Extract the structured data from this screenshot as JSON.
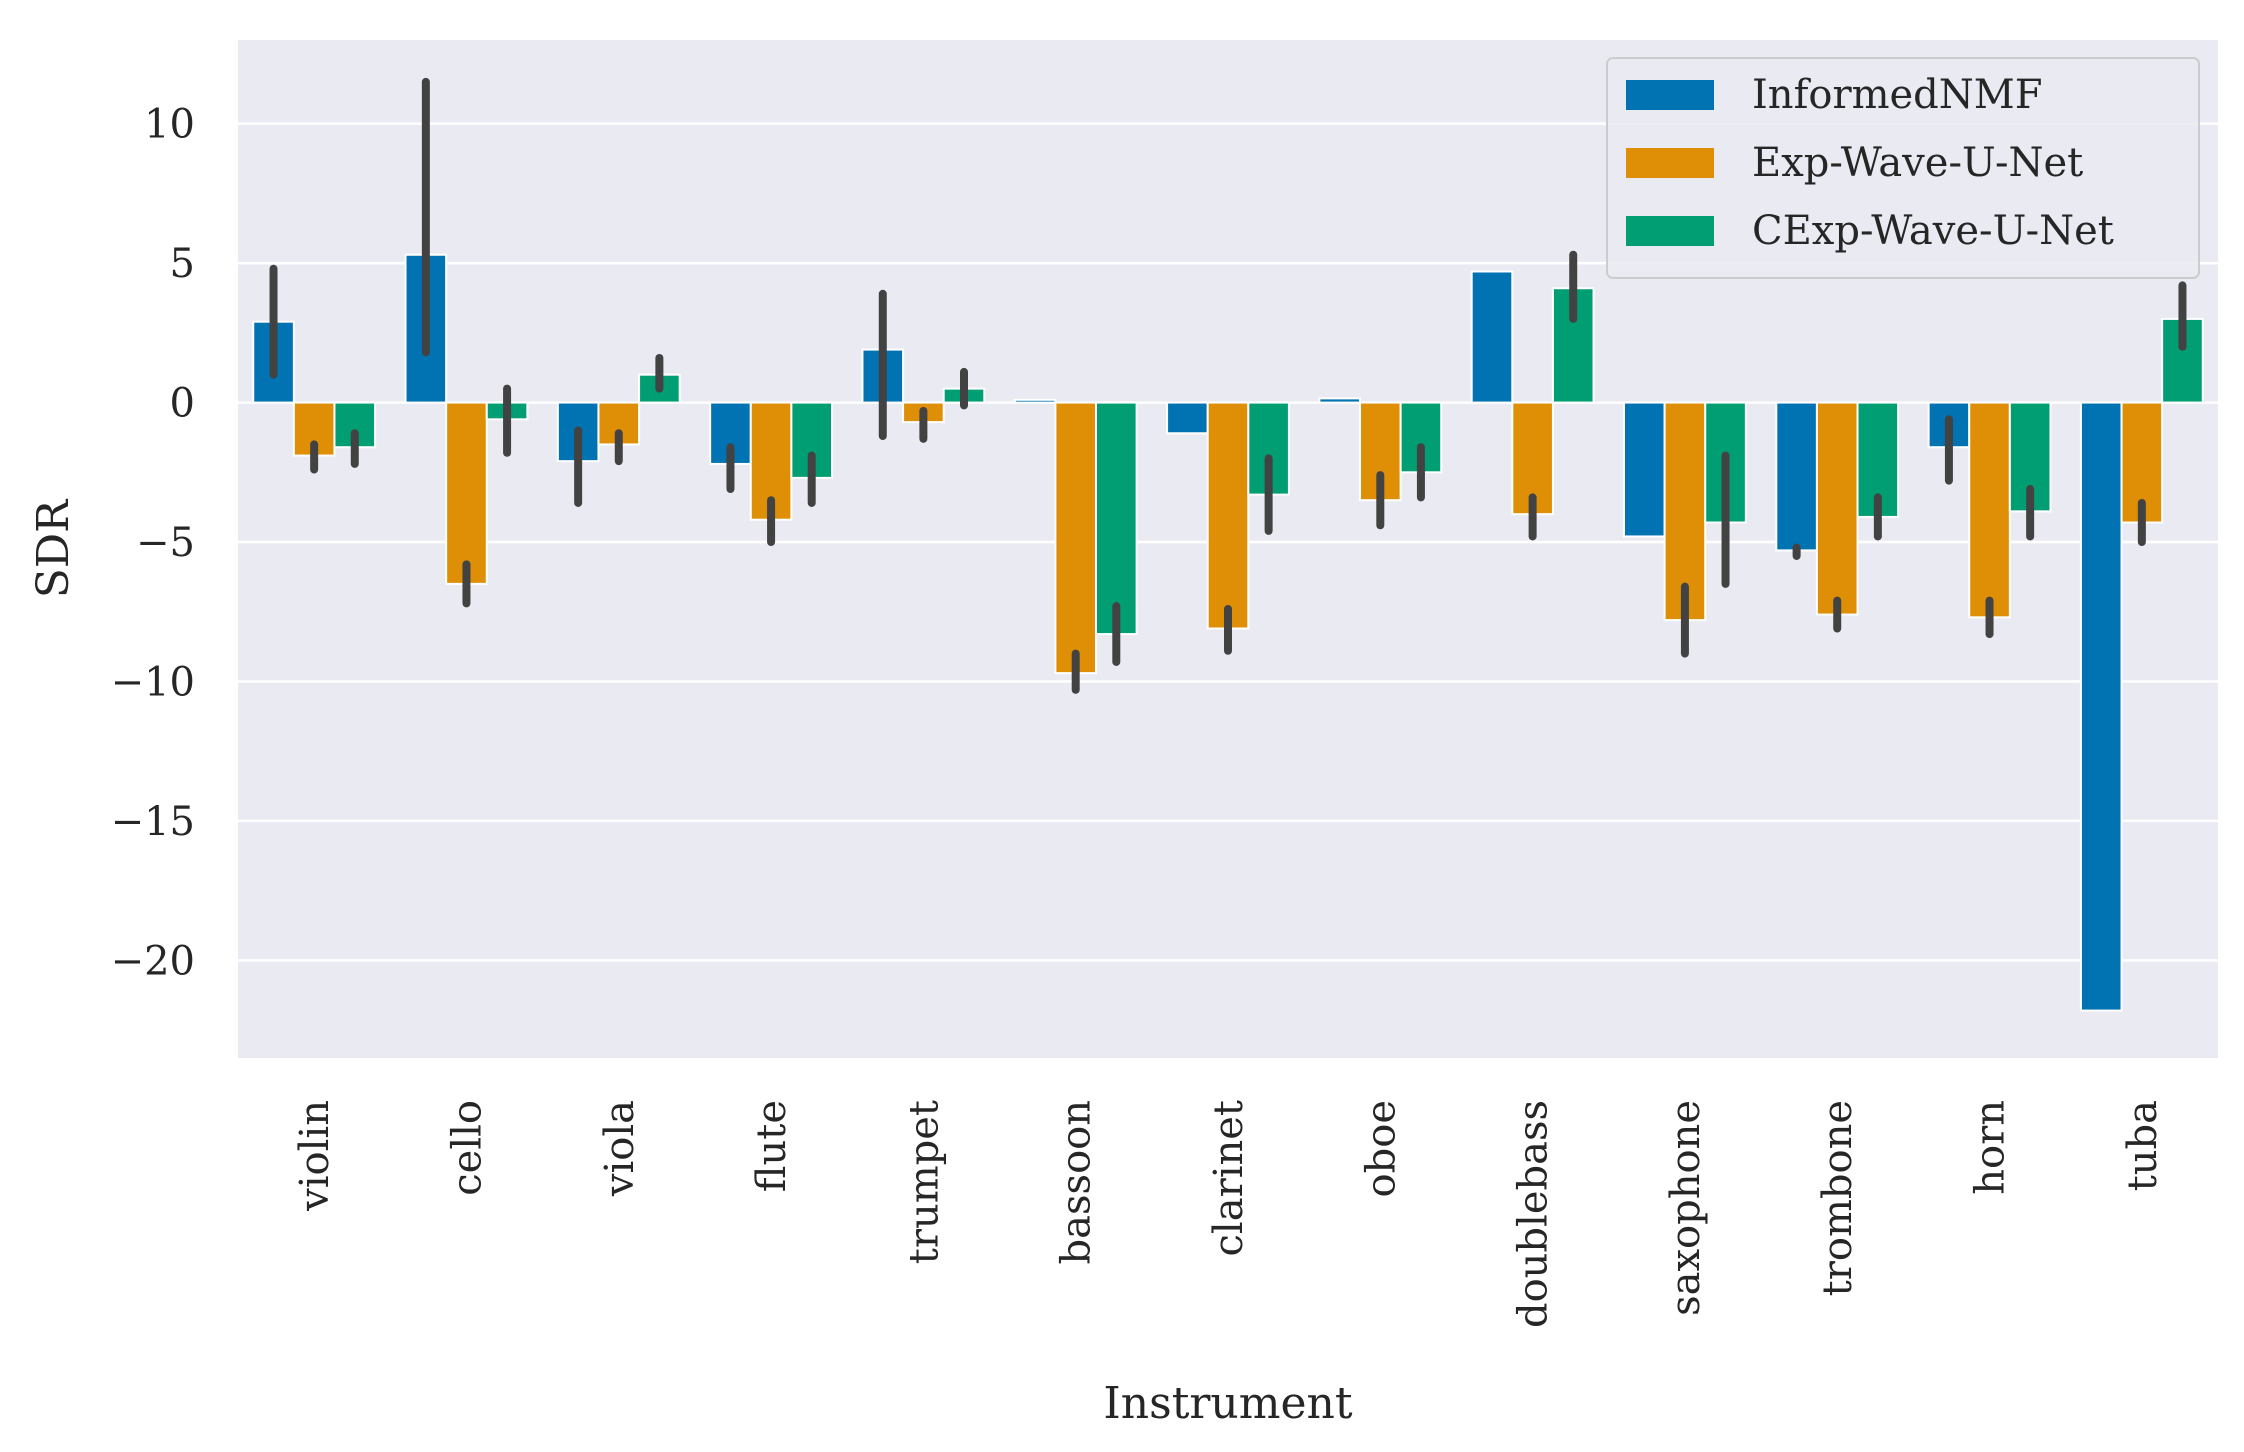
{
  "chart_data": {
    "type": "bar",
    "xlabel": "Instrument",
    "ylabel": "SDR",
    "ylim": [
      -23.5,
      13
    ],
    "yticks": [
      10,
      5,
      0,
      -5,
      -10,
      -15,
      -20
    ],
    "ytick_labels": [
      "10",
      "5",
      "0",
      "−5",
      "−10",
      "−15",
      "−20"
    ],
    "grid": true,
    "legend_position": "top-right",
    "categories": [
      "violin",
      "cello",
      "viola",
      "flute",
      "trumpet",
      "bassoon",
      "clarinet",
      "oboe",
      "doublebass",
      "saxophone",
      "trombone",
      "horn",
      "tuba"
    ],
    "series": [
      {
        "name": "InformedNMF",
        "color": "#0173b2",
        "values": [
          2.9,
          5.3,
          -2.1,
          -2.2,
          1.9,
          0.1,
          -1.1,
          0.15,
          4.7,
          -4.8,
          -5.3,
          -1.6,
          -21.8
        ],
        "error_low": [
          1.0,
          1.8,
          -3.6,
          -3.1,
          -1.2,
          null,
          null,
          null,
          null,
          null,
          -5.5,
          -2.8,
          null
        ],
        "error_high": [
          4.8,
          11.5,
          -1.0,
          -1.6,
          3.9,
          null,
          null,
          null,
          null,
          null,
          -5.2,
          -0.6,
          null
        ]
      },
      {
        "name": "Exp-Wave-U-Net",
        "color": "#de8f05",
        "values": [
          -1.9,
          -6.5,
          -1.5,
          -4.2,
          -0.7,
          -9.7,
          -8.1,
          -3.5,
          -4.0,
          -7.8,
          -7.6,
          -7.7,
          -4.3
        ],
        "error_low": [
          -2.4,
          -7.2,
          -2.1,
          -5.0,
          -1.3,
          -10.3,
          -8.9,
          -4.4,
          -4.8,
          -9.0,
          -8.1,
          -8.3,
          -5.0
        ],
        "error_high": [
          -1.5,
          -5.8,
          -1.1,
          -3.5,
          -0.3,
          -9.0,
          -7.4,
          -2.6,
          -3.4,
          -6.6,
          -7.1,
          -7.1,
          -3.6
        ]
      },
      {
        "name": "CExp-Wave-U-Net",
        "color": "#029e73",
        "values": [
          -1.6,
          -0.6,
          1.0,
          -2.7,
          0.5,
          -8.3,
          -3.3,
          -2.5,
          4.1,
          -4.3,
          -4.1,
          -3.9,
          3.0
        ],
        "error_low": [
          -2.2,
          -1.8,
          0.5,
          -3.6,
          -0.1,
          -9.3,
          -4.6,
          -3.4,
          3.0,
          -6.5,
          -4.8,
          -4.8,
          2.0
        ],
        "error_high": [
          -1.1,
          0.5,
          1.6,
          -1.9,
          1.1,
          -7.3,
          -2.0,
          -1.6,
          5.3,
          -1.9,
          -3.4,
          -3.1,
          4.2
        ]
      }
    ]
  }
}
